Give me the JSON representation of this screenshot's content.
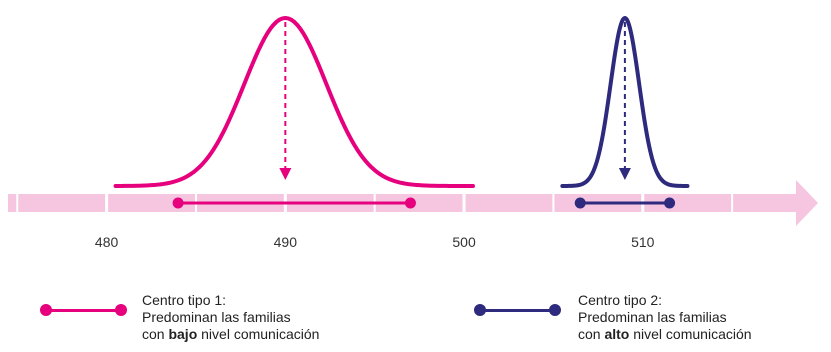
{
  "chart_data": {
    "type": "line",
    "title": "",
    "xlabel": "",
    "ylabel": "",
    "xlim": [
      477,
      516
    ],
    "ticks": [
      480,
      490,
      500,
      510
    ],
    "grid": false,
    "series": [
      {
        "center": 490,
        "sd": 2.3,
        "tails_end": [
          480.5,
          500.5
        ],
        "range": [
          484,
          497
        ],
        "color": "#e6007e"
      },
      {
        "center": 509,
        "sd": 0.8,
        "tails_end": [
          505.5,
          512.5
        ],
        "range": [
          506.5,
          511.5
        ],
        "color": "#2e2a7d"
      }
    ],
    "legend": [
      {
        "color": "#e6007e",
        "line1": "Centro tipo 1:",
        "line2": "Predominan las familias",
        "line3_pre": "con ",
        "line3_bold": "bajo",
        "line3_post": " nivel comunicación"
      },
      {
        "color": "#2e2a7d",
        "line1": "Centro tipo 2:",
        "line2": "Predominan las familias",
        "line3_pre": "con ",
        "line3_bold": "alto",
        "line3_post": " nivel comunicación"
      }
    ]
  },
  "axis_color": "#f6c6e0"
}
